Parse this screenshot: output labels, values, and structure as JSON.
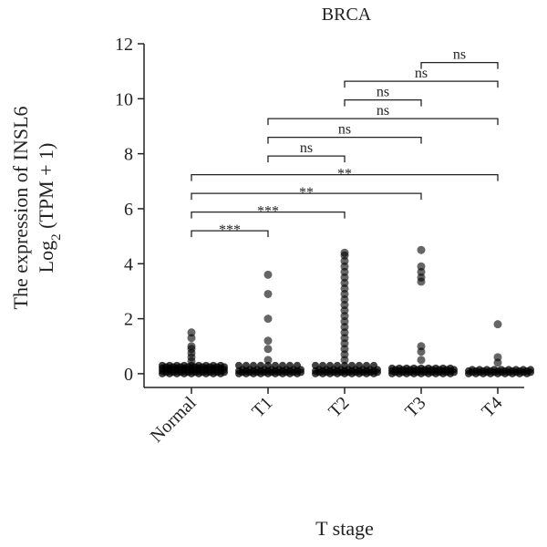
{
  "chart_data": {
    "type": "strip",
    "title": "BRCA",
    "xlabel": "T stage",
    "ylabel": "The expression of INSL6",
    "ylabel2": {
      "base": "Log",
      "subscript": "2",
      "text": " (TPM + 1)"
    },
    "categories": [
      "Normal",
      "T1",
      "T2",
      "T3",
      "T4"
    ],
    "color": "#000000",
    "ylim": [
      -0.5,
      12
    ],
    "yticks": [
      0,
      2,
      4,
      6,
      8,
      10,
      12
    ],
    "values": [
      [
        0,
        0.05,
        0.1,
        0.15,
        0.2,
        0.25,
        0.3,
        0.45,
        0.6,
        0.75,
        0.9,
        1.0,
        1.3,
        1.5
      ],
      [
        0,
        0.05,
        0.1,
        0.15,
        0.3,
        0.5,
        0.9,
        1.2,
        2.0,
        2.9,
        3.6
      ],
      [
        0,
        0.05,
        0.1,
        0.15,
        0.3,
        0.5,
        0.7,
        0.9,
        1.1,
        1.3,
        1.5,
        1.7,
        1.9,
        2.1,
        2.3,
        2.5,
        2.7,
        2.9,
        3.1,
        3.3,
        3.5,
        3.7,
        3.9,
        4.1,
        4.3,
        4.4
      ],
      [
        0,
        0.05,
        0.1,
        0.15,
        0.2,
        0.5,
        0.8,
        1.0,
        3.35,
        3.5,
        3.7,
        3.9,
        4.5
      ],
      [
        0,
        0.05,
        0.1,
        0.15,
        0.4,
        0.6,
        1.8
      ]
    ],
    "comparisons": [
      {
        "groups": [
          0,
          1
        ],
        "label": "***"
      },
      {
        "groups": [
          0,
          2
        ],
        "label": "***"
      },
      {
        "groups": [
          0,
          3
        ],
        "label": "**"
      },
      {
        "groups": [
          0,
          4
        ],
        "label": "**"
      },
      {
        "groups": [
          1,
          2
        ],
        "label": "ns"
      },
      {
        "groups": [
          1,
          3
        ],
        "label": "ns"
      },
      {
        "groups": [
          1,
          4
        ],
        "label": "ns"
      },
      {
        "groups": [
          2,
          3
        ],
        "label": "ns"
      },
      {
        "groups": [
          2,
          4
        ],
        "label": "ns"
      },
      {
        "groups": [
          3,
          4
        ],
        "label": "ns"
      }
    ]
  }
}
